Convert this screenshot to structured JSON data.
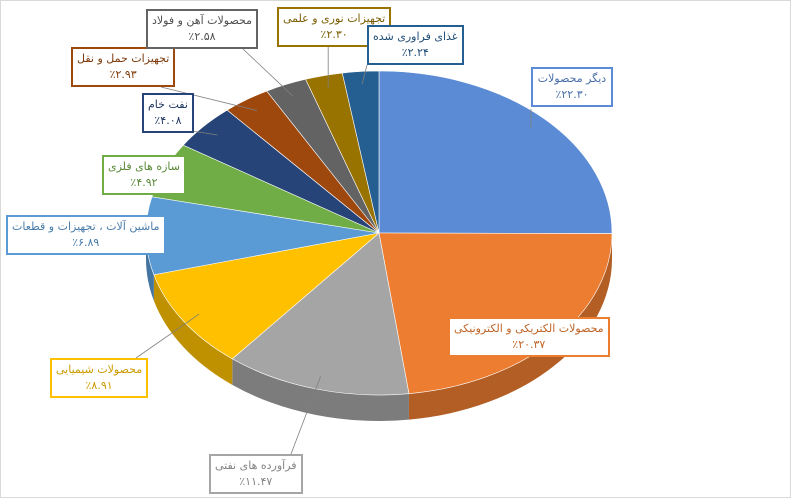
{
  "chart_data": {
    "type": "pie",
    "categories": [
      "دیگر محصولات",
      "محصولات الکتریکی و الکترونیکی",
      "فرآورده های نفتی",
      "محصولات شیمیایی",
      "ماشین آلات ، تجهیزات و قطعات",
      "سازه های فلزی",
      "نفت خام",
      "تجهیزات حمل و نقل",
      "محصولات آهن و فولاد",
      "تجهیزات نوری و علمی",
      "غذای فراوری شده"
    ],
    "values": [
      22.3,
      20.37,
      11.47,
      8.91,
      6.89,
      4.92,
      4.08,
      2.93,
      2.58,
      2.3,
      2.24
    ],
    "value_labels": [
      "٪۲۲.۳۰",
      "٪۲۰.۳۷",
      "٪۱۱.۴۷",
      "٪۸.۹۱",
      "٪۶.۸۹",
      "٪۴.۹۲",
      "٪۴.۰۸",
      "٪۲.۹۳",
      "٪۲.۵۸",
      "٪۲.۳۰",
      "٪۲.۲۴"
    ],
    "colors": [
      "#5b8bd4",
      "#ed7d31",
      "#a5a5a5",
      "#ffc000",
      "#5b9bd5",
      "#70ad47",
      "#264478",
      "#9e480e",
      "#636363",
      "#997300",
      "#255e91"
    ]
  }
}
